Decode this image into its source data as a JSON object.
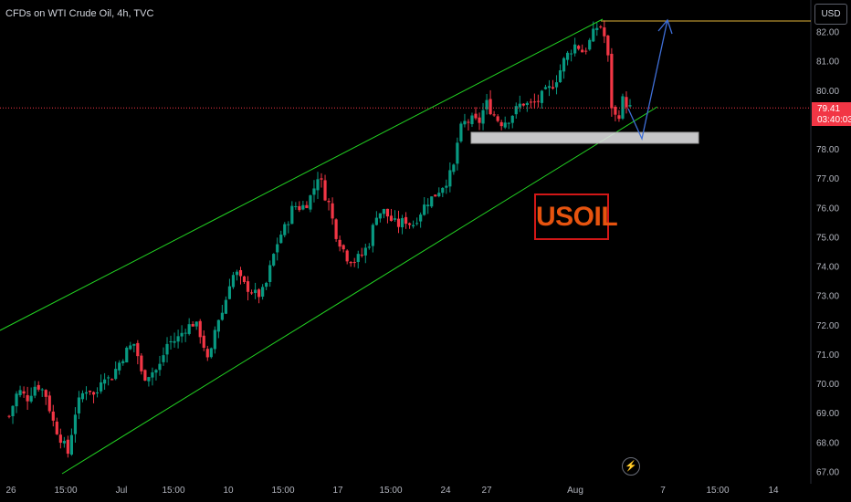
{
  "header": {
    "title": "CFDs on WTI Crude Oil, 4h, TVC"
  },
  "currency_button": "USD",
  "current_price": {
    "value": "79.41",
    "countdown": "03:40:03",
    "color": "#f23645"
  },
  "annotation_text": "USOIL",
  "icons": {
    "replay": "lightning-bolt-icon"
  },
  "colors": {
    "up": "#089981",
    "down": "#f23645",
    "channel": "#22d222",
    "target_line": "#e2b53a",
    "arrow": "#3f6fd8",
    "background": "#000000",
    "axis_text": "#b2b5be"
  },
  "chart_data": {
    "type": "candlestick",
    "title": "CFDs on WTI Crude Oil, 4h, TVC",
    "y_axis": {
      "ticks": [
        67.0,
        68.0,
        69.0,
        70.0,
        71.0,
        72.0,
        73.0,
        74.0,
        75.0,
        76.0,
        77.0,
        78.0,
        79.0,
        80.0,
        81.0,
        82.0
      ],
      "tick_labels": [
        "67.00",
        "68.00",
        "69.00",
        "70.00",
        "71.00",
        "72.00",
        "73.00",
        "74.00",
        "75.00",
        "76.00",
        "77.00",
        "78.00",
        "79.00",
        "80.00",
        "81.00",
        "82.00"
      ],
      "range": [
        66.9,
        82.6
      ]
    },
    "x_axis": {
      "tick_labels": [
        "26",
        "15:00",
        "Jul",
        "15:00",
        "10",
        "15:00",
        "17",
        "15:00",
        "24",
        "27",
        "Aug",
        "7",
        "15:00",
        "14"
      ]
    },
    "close_path": [
      [
        0,
        68.9
      ],
      [
        10,
        69.8
      ],
      [
        20,
        69.5
      ],
      [
        30,
        70.0
      ],
      [
        40,
        69.7
      ],
      [
        50,
        68.6
      ],
      [
        58,
        68.1
      ],
      [
        66,
        67.6
      ],
      [
        72,
        68.9
      ],
      [
        80,
        69.6
      ],
      [
        88,
        69.9
      ],
      [
        96,
        69.5
      ],
      [
        104,
        70.4
      ],
      [
        112,
        70.1
      ],
      [
        120,
        70.6
      ],
      [
        132,
        71.2
      ],
      [
        140,
        71.4
      ],
      [
        148,
        70.2
      ],
      [
        158,
        70.4
      ],
      [
        166,
        70.5
      ],
      [
        176,
        71.4
      ],
      [
        186,
        71.5
      ],
      [
        196,
        71.9
      ],
      [
        206,
        72.1
      ],
      [
        214,
        71.6
      ],
      [
        222,
        70.6
      ],
      [
        230,
        72.1
      ],
      [
        238,
        72.5
      ],
      [
        246,
        73.6
      ],
      [
        252,
        73.8
      ],
      [
        260,
        73.4
      ],
      [
        268,
        73.2
      ],
      [
        276,
        73.0
      ],
      [
        284,
        73.2
      ],
      [
        292,
        74.2
      ],
      [
        300,
        75.0
      ],
      [
        308,
        75.4
      ],
      [
        316,
        76.1
      ],
      [
        324,
        76.0
      ],
      [
        332,
        76.2
      ],
      [
        338,
        76.6
      ],
      [
        344,
        77.2
      ],
      [
        350,
        76.5
      ],
      [
        356,
        76.1
      ],
      [
        362,
        75.2
      ],
      [
        368,
        74.8
      ],
      [
        376,
        74.3
      ],
      [
        384,
        74.2
      ],
      [
        392,
        74.4
      ],
      [
        400,
        74.8
      ],
      [
        408,
        75.8
      ],
      [
        416,
        75.9
      ],
      [
        424,
        75.6
      ],
      [
        432,
        75.4
      ],
      [
        440,
        75.6
      ],
      [
        448,
        75.4
      ],
      [
        456,
        75.8
      ],
      [
        464,
        76.2
      ],
      [
        472,
        76.4
      ],
      [
        480,
        76.7
      ],
      [
        488,
        77.0
      ],
      [
        494,
        77.4
      ],
      [
        500,
        78.6
      ],
      [
        506,
        78.9
      ],
      [
        514,
        79.0
      ],
      [
        522,
        78.9
      ],
      [
        530,
        79.6
      ],
      [
        538,
        79.2
      ],
      [
        546,
        78.9
      ],
      [
        554,
        79.0
      ],
      [
        562,
        79.3
      ],
      [
        570,
        79.6
      ],
      [
        578,
        79.5
      ],
      [
        586,
        79.6
      ],
      [
        594,
        79.9
      ],
      [
        602,
        80.1
      ],
      [
        610,
        80.5
      ],
      [
        616,
        81.0
      ],
      [
        622,
        81.3
      ],
      [
        630,
        81.6
      ],
      [
        638,
        81.3
      ],
      [
        644,
        81.6
      ],
      [
        650,
        82.0
      ],
      [
        656,
        82.3
      ],
      [
        662,
        81.8
      ],
      [
        666,
        81.0
      ],
      [
        670,
        79.3
      ],
      [
        676,
        79.0
      ],
      [
        682,
        79.7
      ],
      [
        690,
        79.41
      ]
    ],
    "price_range_box": {
      "low": 78.4,
      "high": 78.8
    },
    "target_level": 82.4,
    "current_price_line": 79.41
  }
}
